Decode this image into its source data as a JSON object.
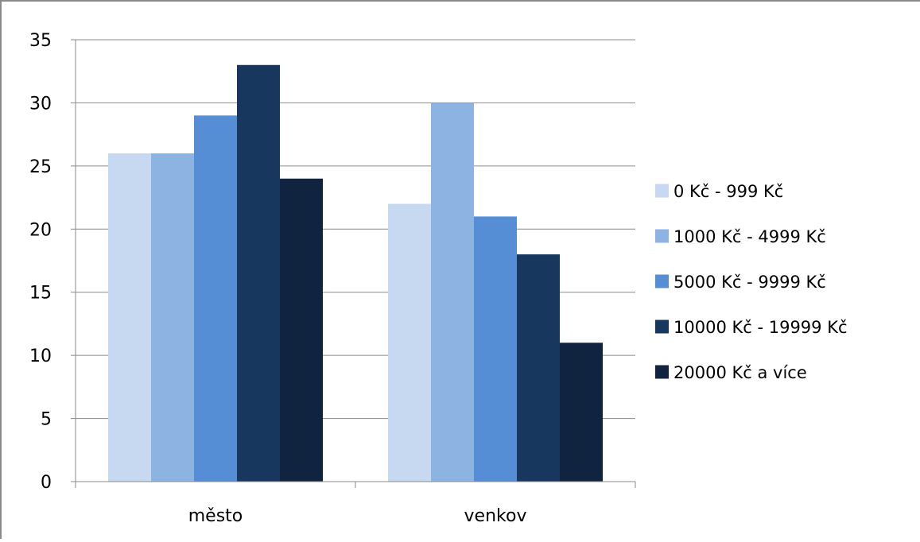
{
  "chart_data": {
    "type": "bar",
    "title": "",
    "xlabel": "",
    "ylabel": "",
    "categories": [
      "město",
      "venkov"
    ],
    "series": [
      {
        "name": "0 Kč - 999 Kč",
        "values": [
          26,
          22
        ],
        "color": "#c6d9f1"
      },
      {
        "name": "1000 Kč - 4999 Kč",
        "values": [
          26,
          30
        ],
        "color": "#8db3e2"
      },
      {
        "name": "5000 Kč - 9999 Kč",
        "values": [
          29,
          21
        ],
        "color": "#558ed5"
      },
      {
        "name": "10000 Kč - 19999 Kč",
        "values": [
          33,
          18
        ],
        "color": "#17375e"
      },
      {
        "name": "20000 Kč a více",
        "values": [
          24,
          11
        ],
        "color": "#10243f"
      }
    ],
    "ylim": [
      0,
      35
    ],
    "yticks": [
      0,
      5,
      10,
      15,
      20,
      25,
      30,
      35
    ],
    "grid": true,
    "legend_position": "right"
  }
}
